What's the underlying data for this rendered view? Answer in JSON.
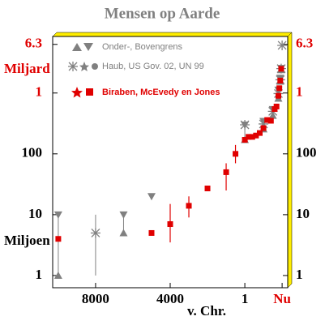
{
  "chart_data": {
    "type": "scatter",
    "title": "Mensen op Aarde",
    "x_label": "v. Chr.",
    "annotations": [
      {
        "text": "Miljard",
        "color": "#e00000"
      },
      {
        "text": "Miljoen",
        "color": "#000000"
      }
    ],
    "log_y": true,
    "xlim": [
      -10300,
      2300
    ],
    "ylim": [
      0.63,
      8500
    ],
    "xticks": [
      {
        "value": -8000,
        "label": "8000"
      },
      {
        "value": -4000,
        "label": "4000"
      },
      1,
      {
        "value": 2000,
        "label": "Nu",
        "color": "#e00000"
      }
    ],
    "yticks": [
      1,
      10,
      100,
      {
        "value": 1000,
        "label": "1",
        "color": "#e00000"
      },
      {
        "value": 6300,
        "label": "6.3",
        "color": "#e00000"
      }
    ],
    "series": [
      {
        "name": "Onder-, Bovengrens",
        "color": "#808080",
        "marker": "triangles",
        "x": [
          -10000,
          -6500,
          -5000,
          1,
          1000,
          1500,
          1800,
          1900,
          1950
        ],
        "low": [
          1,
          5,
          null,
          170,
          254,
          425,
          813,
          1550,
          2400
        ],
        "high": [
          10,
          10,
          20,
          300,
          345,
          540,
          1125,
          1762,
          2560
        ]
      },
      {
        "name": "Haub, US Gov. 02, UN 99",
        "color": "#808080",
        "marker": "asterisk",
        "x": [
          -8000,
          1,
          1000,
          1500,
          1800,
          1900,
          1950,
          2000
        ],
        "values": [
          5,
          300,
          310,
          500,
          980,
          1650,
          2520,
          6070
        ],
        "low": [
          1,
          null,
          null,
          null,
          null,
          null,
          null,
          null
        ],
        "high": [
          10,
          null,
          null,
          null,
          null,
          null,
          null,
          null
        ]
      },
      {
        "name": "Biraben, McEvedy en Jones",
        "color": "#e00000",
        "marker": "square",
        "x": [
          -10000,
          -5000,
          -4000,
          -3000,
          -2000,
          -1000,
          -500,
          1,
          200,
          400,
          600,
          800,
          1000,
          1200,
          1400,
          1600,
          1700,
          1800,
          1850,
          1900,
          1950
        ],
        "values": [
          4,
          5,
          7,
          14,
          27,
          50,
          100,
          170,
          190,
          190,
          200,
          220,
          265,
          360,
          350,
          545,
          600,
          900,
          1200,
          1600,
          2500
        ],
        "low": [
          null,
          null,
          3.5,
          9,
          null,
          25,
          70,
          null,
          null,
          null,
          null,
          null,
          null,
          null,
          null,
          null,
          null,
          null,
          null,
          null,
          null
        ],
        "high": [
          null,
          null,
          15,
          20,
          null,
          70,
          140,
          null,
          null,
          null,
          null,
          null,
          null,
          null,
          null,
          null,
          null,
          null,
          null,
          null,
          null
        ]
      }
    ]
  }
}
